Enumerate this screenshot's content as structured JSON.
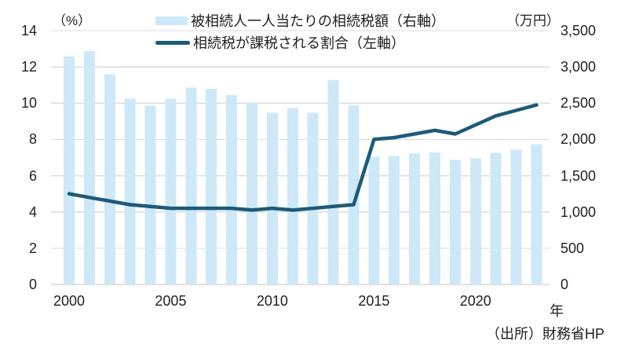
{
  "chart_data": {
    "type": "bar+line",
    "title": "",
    "categories": [
      2000,
      2001,
      2002,
      2003,
      2004,
      2005,
      2006,
      2007,
      2008,
      2009,
      2010,
      2011,
      2012,
      2013,
      2014,
      2015,
      2016,
      2017,
      2018,
      2019,
      2020,
      2021,
      2022,
      2023
    ],
    "series": [
      {
        "name": "被相続人一人当たりの相続税額（右軸）",
        "type": "bar",
        "axis": "right",
        "unit": "万円",
        "values": [
          3150,
          3220,
          2900,
          2560,
          2465,
          2565,
          2715,
          2700,
          2610,
          2510,
          2365,
          2435,
          2370,
          2820,
          2470,
          1760,
          1770,
          1810,
          1820,
          1715,
          1740,
          1815,
          1860,
          1935
        ]
      },
      {
        "name": "相続税が課税される割合（左軸）",
        "type": "line",
        "axis": "left",
        "unit": "%",
        "values": [
          5.0,
          4.8,
          4.6,
          4.4,
          4.3,
          4.2,
          4.2,
          4.2,
          4.2,
          4.1,
          4.2,
          4.1,
          4.2,
          4.3,
          4.4,
          8.0,
          8.1,
          8.3,
          8.5,
          8.3,
          8.8,
          9.3,
          9.6,
          9.9
        ]
      }
    ],
    "left_axis": {
      "unit": "（%）",
      "min": 0,
      "max": 14,
      "tick_labels": [
        "14",
        "12",
        "10",
        "8",
        "6",
        "4",
        "2",
        "0"
      ]
    },
    "right_axis": {
      "unit": "（万円）",
      "min": 0,
      "max": 3500,
      "tick_labels": [
        "3,500",
        "3,000",
        "2,500",
        "2,000",
        "1,500",
        "1,000",
        "500",
        "0"
      ]
    },
    "x_axis": {
      "label": "年",
      "tick_labels": [
        "2000",
        "2005",
        "2010",
        "2015",
        "2020"
      ],
      "tick_years": [
        2000,
        2005,
        2010,
        2015,
        2020
      ]
    },
    "source": "（出所）財務省HP",
    "legend_position": "top",
    "grid": "horizontal",
    "colors": {
      "bar": "#CDE9F8",
      "line": "#1C5A77",
      "gridline": "#DCDCDC",
      "axis_line": "#C3C3C3",
      "text": "#1F1F1F"
    }
  }
}
